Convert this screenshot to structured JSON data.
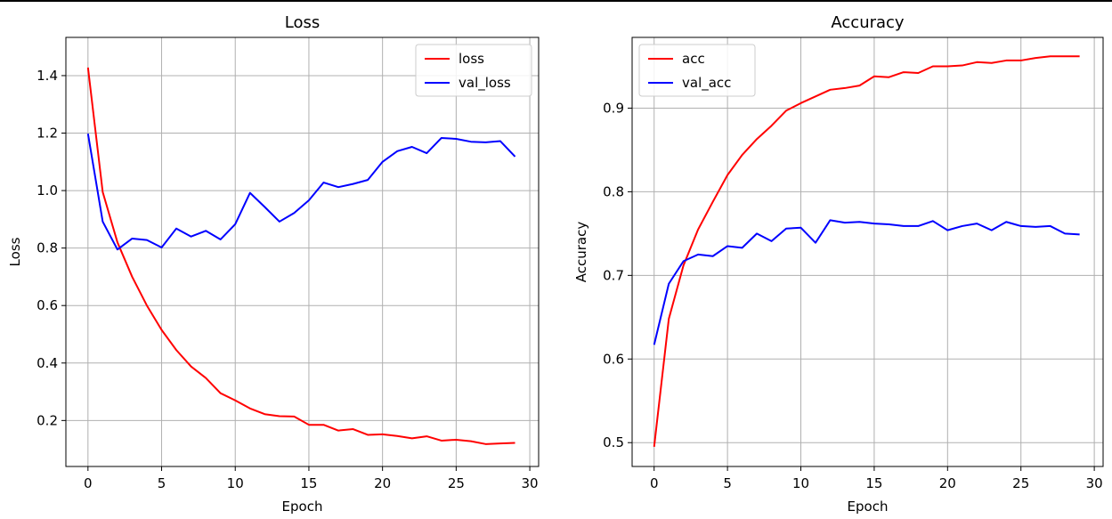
{
  "chart_data": [
    {
      "type": "line",
      "title": "Loss",
      "xlabel": "Epoch",
      "ylabel": "Loss",
      "xlim": [
        -1.5,
        30.6
      ],
      "ylim": [
        0.04,
        1.533
      ],
      "xticks": [
        0,
        5,
        10,
        15,
        20,
        25,
        30
      ],
      "yticks": [
        0.2,
        0.4,
        0.6,
        0.8,
        1.0,
        1.2,
        1.4
      ],
      "ytick_labels": [
        "0.2",
        "0.4",
        "0.6",
        "0.8",
        "1.0",
        "1.2",
        "1.4"
      ],
      "grid": true,
      "legend_position": "top-right",
      "x": [
        0,
        1,
        2,
        3,
        4,
        5,
        6,
        7,
        8,
        9,
        10,
        11,
        12,
        13,
        14,
        15,
        16,
        17,
        18,
        19,
        20,
        21,
        22,
        23,
        24,
        25,
        26,
        27,
        28,
        29
      ],
      "series": [
        {
          "name": "loss",
          "color": "#ff0000",
          "values": [
            1.428,
            0.995,
            0.82,
            0.7,
            0.6,
            0.515,
            0.445,
            0.388,
            0.348,
            0.295,
            0.27,
            0.242,
            0.222,
            0.215,
            0.214,
            0.185,
            0.185,
            0.165,
            0.17,
            0.15,
            0.152,
            0.146,
            0.138,
            0.145,
            0.13,
            0.133,
            0.128,
            0.118,
            0.12,
            0.122
          ]
        },
        {
          "name": "val_loss",
          "color": "#0000ff",
          "values": [
            1.198,
            0.892,
            0.795,
            0.833,
            0.828,
            0.802,
            0.868,
            0.84,
            0.86,
            0.83,
            0.883,
            0.992,
            0.943,
            0.892,
            0.922,
            0.966,
            1.028,
            1.012,
            1.023,
            1.037,
            1.1,
            1.137,
            1.152,
            1.13,
            1.183,
            1.18,
            1.17,
            1.168,
            1.172,
            1.118
          ]
        }
      ]
    },
    {
      "type": "line",
      "title": "Accuracy",
      "xlabel": "Epoch",
      "ylabel": "Accuracy",
      "xlim": [
        -1.5,
        30.6
      ],
      "ylim": [
        0.4715,
        0.9846
      ],
      "xticks": [
        0,
        5,
        10,
        15,
        20,
        25,
        30
      ],
      "yticks": [
        0.5,
        0.6,
        0.7,
        0.8,
        0.9
      ],
      "ytick_labels": [
        "0.5",
        "0.6",
        "0.7",
        "0.8",
        "0.9"
      ],
      "grid": true,
      "legend_position": "top-left",
      "x": [
        0,
        1,
        2,
        3,
        4,
        5,
        6,
        7,
        8,
        9,
        10,
        11,
        12,
        13,
        14,
        15,
        16,
        17,
        18,
        19,
        20,
        21,
        22,
        23,
        24,
        25,
        26,
        27,
        28,
        29
      ],
      "series": [
        {
          "name": "acc",
          "color": "#ff0000",
          "values": [
            0.495,
            0.648,
            0.712,
            0.755,
            0.788,
            0.82,
            0.844,
            0.863,
            0.879,
            0.897,
            0.906,
            0.914,
            0.922,
            0.924,
            0.927,
            0.938,
            0.937,
            0.943,
            0.942,
            0.95,
            0.95,
            0.951,
            0.955,
            0.954,
            0.957,
            0.957,
            0.96,
            0.962,
            0.962,
            0.962
          ]
        },
        {
          "name": "val_acc",
          "color": "#0000ff",
          "values": [
            0.617,
            0.69,
            0.717,
            0.725,
            0.723,
            0.735,
            0.733,
            0.75,
            0.741,
            0.756,
            0.757,
            0.739,
            0.766,
            0.763,
            0.764,
            0.762,
            0.761,
            0.759,
            0.759,
            0.765,
            0.754,
            0.759,
            0.762,
            0.754,
            0.764,
            0.759,
            0.758,
            0.759,
            0.75,
            0.749
          ]
        }
      ]
    }
  ]
}
